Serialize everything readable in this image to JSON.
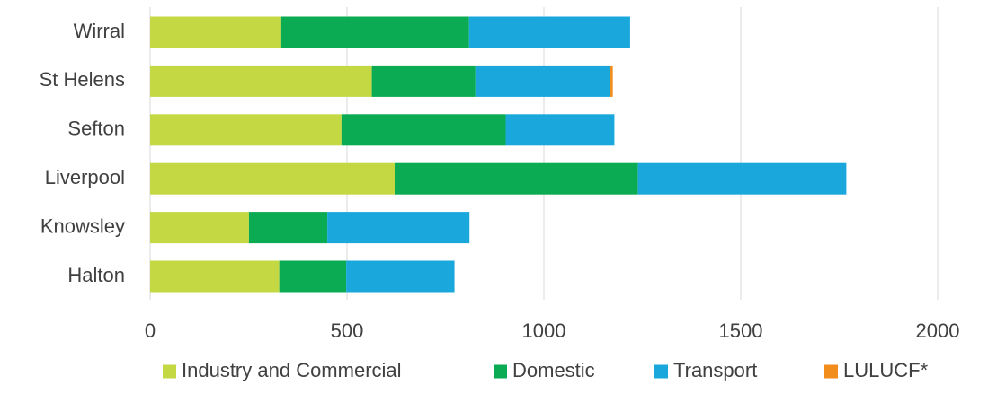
{
  "chart_data": {
    "type": "bar",
    "orientation": "horizontal",
    "stacked": true,
    "title": "",
    "xlabel": "",
    "ylabel": "",
    "categories": [
      "Wirral",
      "St Helens",
      "Sefton",
      "Liverpool",
      "Knowsley",
      "Halton"
    ],
    "series": [
      {
        "name": "Industry and Commercial",
        "color": "#c3d843",
        "values": [
          333,
          563,
          486,
          621,
          251,
          328
        ]
      },
      {
        "name": "Domestic",
        "color": "#0aab52",
        "values": [
          477,
          263,
          417,
          618,
          199,
          170
        ]
      },
      {
        "name": "Transport",
        "color": "#1aa7dc",
        "values": [
          409,
          343,
          276,
          529,
          361,
          275
        ]
      },
      {
        "name": "LULUCF*",
        "color": "#f28c1a",
        "values": [
          0,
          6,
          0,
          0,
          0,
          0
        ]
      }
    ],
    "xlim": [
      0,
      2000
    ],
    "xticks": [
      0,
      500,
      1000,
      1500,
      2000
    ],
    "grid": "vertical",
    "legend": "bottom"
  }
}
